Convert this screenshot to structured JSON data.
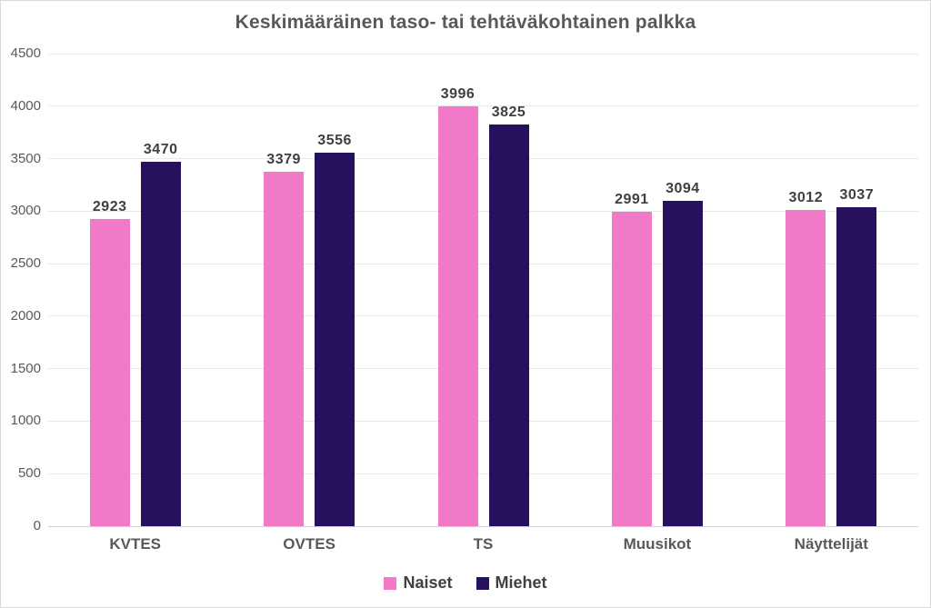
{
  "title": "Keskimääräinen taso- tai tehtäväkohtainen palkka",
  "colors": {
    "naiset": "#f07ac8",
    "miehet": "#27115f",
    "title_text": "#595959",
    "axis_text": "#595959",
    "data_label_text": "#3f3f3f",
    "gridline": "#e8e8e8",
    "axis_line": "#d2d2d2",
    "frame_border": "#d9d9d9",
    "background": "#ffffff"
  },
  "chart_data": {
    "type": "bar",
    "title": "Keskimääräinen taso- tai tehtäväkohtainen palkka",
    "categories": [
      "KVTES",
      "OVTES",
      "TS",
      "Muusikot",
      "Näyttelijät"
    ],
    "series": [
      {
        "name": "Naiset",
        "color": "#f07ac8",
        "values": [
          2923,
          3379,
          3996,
          2991,
          3012
        ]
      },
      {
        "name": "Miehet",
        "color": "#27115f",
        "values": [
          3470,
          3556,
          3825,
          3094,
          3037
        ]
      }
    ],
    "xlabel": "",
    "ylabel": "",
    "ylim": [
      0,
      4500
    ],
    "ytick_interval": 500,
    "yticks": [
      0,
      500,
      1000,
      1500,
      2000,
      2500,
      3000,
      3500,
      4000,
      4500
    ],
    "grid": true,
    "data_labels": true,
    "legend_position": "bottom"
  }
}
